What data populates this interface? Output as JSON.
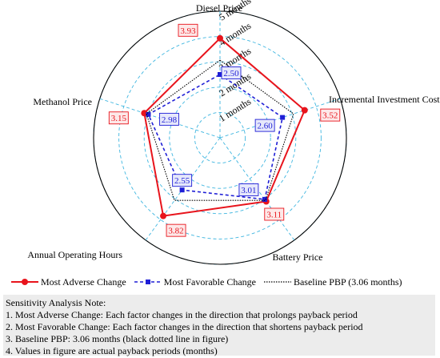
{
  "chart_data": {
    "type": "radar",
    "categories": [
      "Diesel Price",
      "Incremental Investment Cost",
      "Battery Price",
      "Annual Operating Hours",
      "Methanol Price"
    ],
    "rings": [
      1,
      2,
      3,
      4,
      5
    ],
    "ring_labels": [
      "1 months",
      "2 months",
      "3 months",
      "4 months",
      "5 months"
    ],
    "rlim": [
      0,
      5
    ],
    "grid": true,
    "series": [
      {
        "name": "Most Adverse Change",
        "values": [
          3.93,
          3.52,
          3.11,
          3.82,
          3.15
        ],
        "labels": [
          "3.93",
          "3.52",
          "3.11",
          "3.82",
          "3.15"
        ],
        "color": "#e8141c",
        "style": "solid",
        "marker": "circle"
      },
      {
        "name": "Most Favorable Change",
        "values": [
          2.5,
          2.6,
          3.01,
          2.55,
          2.98
        ],
        "labels": [
          "2.50",
          "2.60",
          "3.01",
          "2.55",
          "2.98"
        ],
        "color": "#1f1fd6",
        "style": "dashed",
        "marker": "square"
      },
      {
        "name": "Baseline PBP (3.06 months)",
        "values": [
          3.06,
          3.06,
          3.06,
          3.06,
          3.06
        ],
        "color": "#000000",
        "style": "dotted",
        "marker": "none"
      }
    ],
    "legend_position": "bottom"
  },
  "legend": {
    "adverse": "Most Adverse Change",
    "favorable": "Most Favorable Change",
    "baseline": "Baseline PBP (3.06 months)"
  },
  "note": {
    "title": "Sensitivity Analysis Note:",
    "lines": [
      "1. Most Adverse Change: Each factor changes in the direction that prolongs payback period",
      "2. Most Favorable Change: Each factor changes in the direction that shortens payback period",
      "3. Baseline PBP: 3.06 months (black dotted line in figure)",
      "4. Values in figure are actual payback periods (months)"
    ]
  },
  "colors": {
    "adverse": "#e8141c",
    "favorable": "#1f1fd6",
    "baseline": "#000000",
    "grid": "#3fb6e0",
    "note_bg": "#ececec"
  }
}
